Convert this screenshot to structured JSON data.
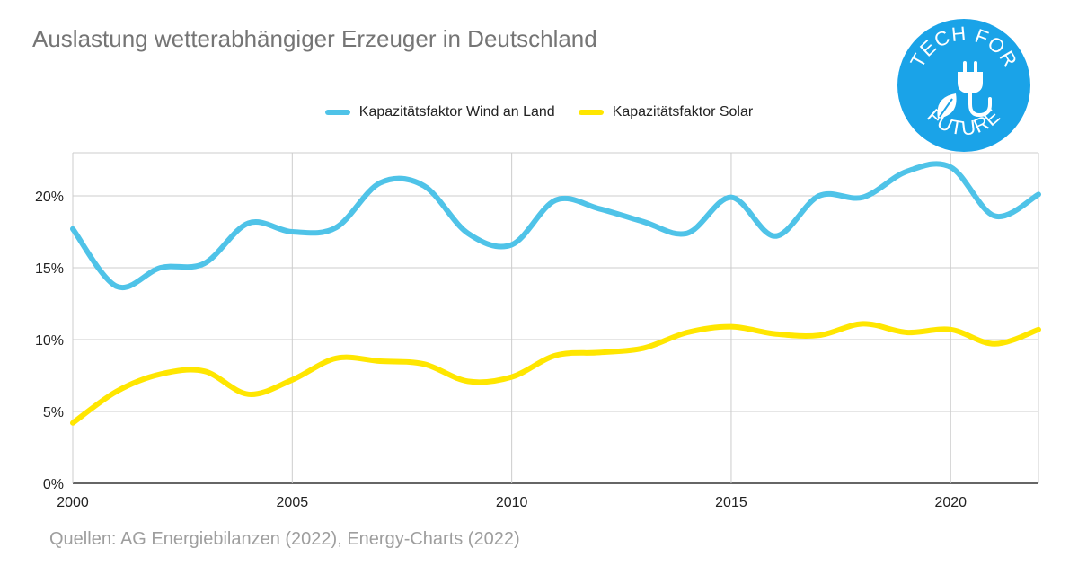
{
  "chart_data": {
    "type": "line",
    "title": "Auslastung wetterabhängiger Erzeuger in Deutschland",
    "xlabel": "",
    "ylabel": "",
    "x": [
      2000,
      2001,
      2002,
      2003,
      2004,
      2005,
      2006,
      2007,
      2008,
      2009,
      2010,
      2011,
      2012,
      2013,
      2014,
      2015,
      2016,
      2017,
      2018,
      2019,
      2020,
      2021,
      2022
    ],
    "xlim": [
      2000,
      2022
    ],
    "ylim": [
      0,
      23
    ],
    "x_ticks": [
      "2000",
      "2005",
      "2010",
      "2015",
      "2020"
    ],
    "x_tick_values": [
      2000,
      2005,
      2010,
      2015,
      2020
    ],
    "y_ticks": [
      "0%",
      "5%",
      "10%",
      "15%",
      "20%"
    ],
    "y_tick_values": [
      0,
      5,
      10,
      15,
      20
    ],
    "grid": true,
    "legend_position": "top",
    "series": [
      {
        "name": "Kapazitätsfaktor Wind an Land",
        "color": "#4FC3E8",
        "values": [
          17.7,
          13.7,
          15.0,
          15.3,
          18.1,
          17.5,
          17.8,
          20.9,
          20.7,
          17.4,
          16.6,
          19.7,
          19.1,
          18.2,
          17.4,
          19.9,
          17.2,
          20.0,
          19.9,
          21.7,
          22.0,
          18.6,
          20.1
        ]
      },
      {
        "name": "Kapazitätsfaktor Solar",
        "color": "#FFE600",
        "values": [
          4.2,
          6.4,
          7.6,
          7.8,
          6.2,
          7.2,
          8.7,
          8.5,
          8.3,
          7.1,
          7.4,
          8.9,
          9.1,
          9.4,
          10.5,
          10.9,
          10.4,
          10.3,
          11.1,
          10.5,
          10.7,
          9.7,
          10.7
        ]
      }
    ]
  },
  "source": "Quellen: AG Energiebilanzen (2022), Energy-Charts (2022)",
  "logo": {
    "text_top": "TECH FOR",
    "text_bottom": "FUTURE",
    "color": "#1AA3E8",
    "icon": "plug-leaf-icon"
  }
}
